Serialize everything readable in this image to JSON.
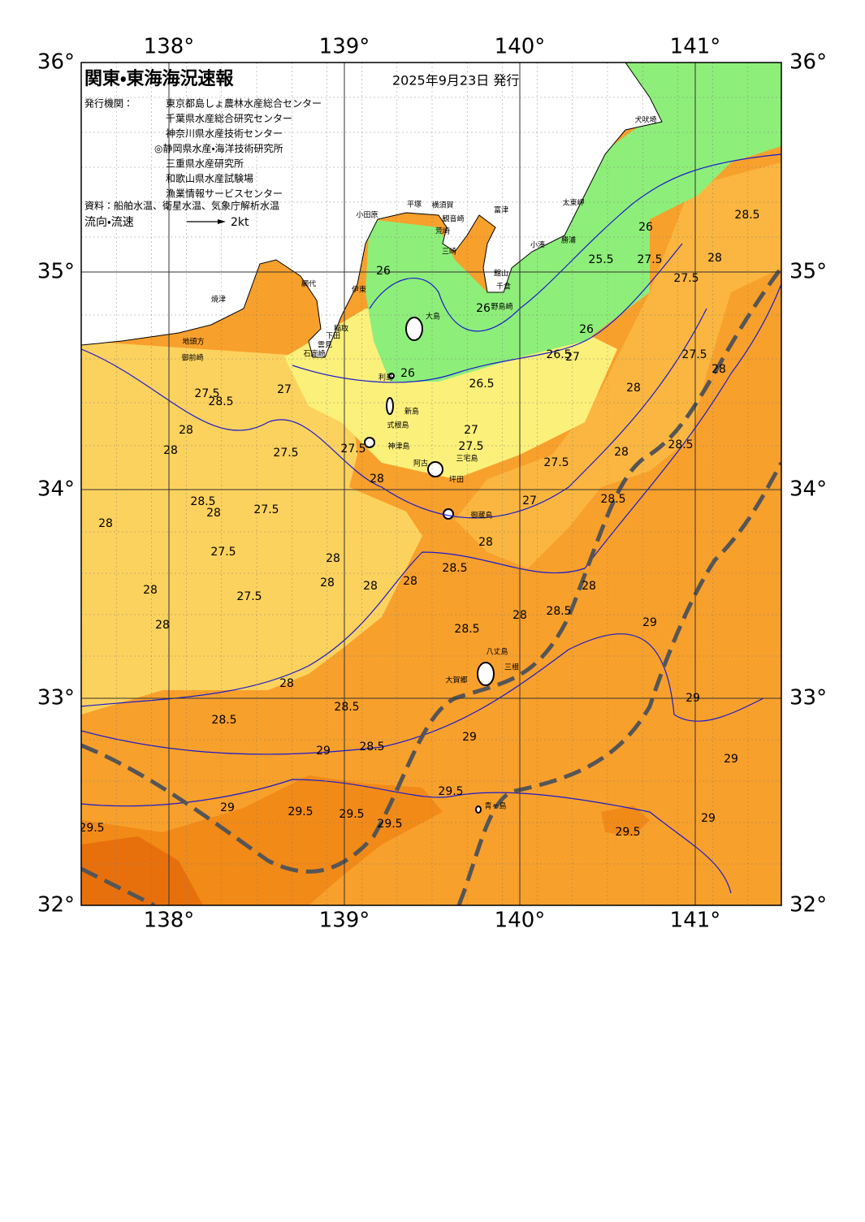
{
  "header": {
    "title": "関東・東海海況速報",
    "date": "2025年9月23日 発行",
    "publisher_label": "発行機関：",
    "publishers": [
      "東京都島しょ農林水産総合センター",
      "千葉県水産総合研究センター",
      "神奈川県水産技術センター",
      "◎静岡県水産・海洋技術研究所",
      "三重県水産研究所",
      "和歌山県水産試験場",
      "漁業情報サービスセンター"
    ],
    "source": "資料：船舶水温、衛星水温、気象庁解析水温",
    "flow_legend": "流向・流速",
    "flow_scale": "2kt"
  },
  "map": {
    "lon_labels": [
      "138°",
      "139°",
      "140°",
      "141°"
    ],
    "lat_labels": [
      "36°",
      "35°",
      "34°",
      "33°",
      "32°"
    ],
    "place_names": [
      "犬吠埼",
      "太東岬",
      "勝浦",
      "小湊",
      "富津",
      "館山",
      "千倉",
      "野島崎",
      "横須賀",
      "観音崎",
      "荒崎",
      "三崎",
      "平塚",
      "小田原",
      "伊東",
      "網代",
      "稲取",
      "下田",
      "雲見",
      "石廊崎",
      "焼津",
      "地頭方",
      "御前崎",
      "大島",
      "利島",
      "新島",
      "式根島",
      "神津島",
      "三宅島",
      "阿古",
      "坪田",
      "御蔵島",
      "八丈島",
      "三根",
      "大賀郷",
      "青ヶ島"
    ],
    "isotherm_labels": [
      "26",
      "26",
      "26",
      "25.5",
      "27.5",
      "28.5",
      "28",
      "27.5",
      "26",
      "26.5",
      "27",
      "27.5",
      "28",
      "26",
      "26.5",
      "27",
      "27.5",
      "28.5",
      "28",
      "27.5",
      "28",
      "27",
      "27.5",
      "28",
      "28",
      "27.5",
      "28",
      "28.5",
      "27.5",
      "28.5",
      "27",
      "28",
      "28.5",
      "27.5",
      "28",
      "28",
      "27.5",
      "28",
      "28.5",
      "28",
      "28",
      "28",
      "27.5",
      "28",
      "28",
      "28.5",
      "28",
      "28",
      "29",
      "28.5",
      "28",
      "28.5",
      "29",
      "28.5",
      "29",
      "29",
      "28.5",
      "29",
      "29.5",
      "29",
      "29.5",
      "29.5",
      "29.5",
      "29",
      "29.5",
      "29.5"
    ]
  }
}
